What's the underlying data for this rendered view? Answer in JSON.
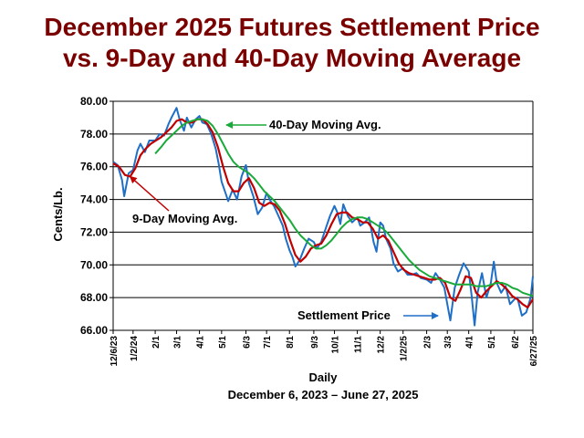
{
  "title_line1": "December 2025 Futures Settlement Price",
  "title_line2": "vs. 9-Day and 40-Day Moving Average",
  "colors": {
    "title": "#7a0000",
    "settlement": "#1f6fc6",
    "ma9": "#c00000",
    "ma40": "#1aaa3a"
  },
  "chart_data": {
    "type": "line",
    "ylabel": "Cents/Lb.",
    "xlabel": "Daily",
    "xlabel2": "December 6, 2023 – June 27, 2025",
    "ylim": [
      66.0,
      80.0
    ],
    "yticks": [
      "66.00",
      "68.00",
      "70.00",
      "72.00",
      "74.00",
      "76.00",
      "78.00",
      "80.00"
    ],
    "grid": true,
    "x_tick_labels": [
      "12/6/23",
      "1/2/24",
      "2/1",
      "3/1",
      "4/1",
      "5/1",
      "6/3",
      "7/1",
      "8/1",
      "9/3",
      "10/1",
      "11/1",
      "12/2",
      "1/2/25",
      "2/3",
      "3/3",
      "4/1",
      "5/1",
      "6/2",
      "6/27/25"
    ],
    "x_tick_dates": [
      "2023-12-06",
      "2024-01-02",
      "2024-02-01",
      "2024-03-01",
      "2024-04-01",
      "2024-05-01",
      "2024-06-03",
      "2024-07-01",
      "2024-08-01",
      "2024-09-03",
      "2024-10-01",
      "2024-11-01",
      "2024-12-02",
      "2025-01-02",
      "2025-02-03",
      "2025-03-03",
      "2025-04-01",
      "2025-05-01",
      "2025-06-02",
      "2025-06-27"
    ],
    "series": [
      {
        "name": "Settlement Price",
        "points": [
          [
            "2023-12-06",
            76.3
          ],
          [
            "2023-12-12",
            76.1
          ],
          [
            "2023-12-18",
            75.2
          ],
          [
            "2023-12-21",
            74.2
          ],
          [
            "2023-12-27",
            75.6
          ],
          [
            "2024-01-02",
            75.8
          ],
          [
            "2024-01-08",
            77.0
          ],
          [
            "2024-01-12",
            77.4
          ],
          [
            "2024-01-18",
            76.9
          ],
          [
            "2024-01-24",
            77.6
          ],
          [
            "2024-02-01",
            77.6
          ],
          [
            "2024-02-07",
            78.0
          ],
          [
            "2024-02-13",
            77.9
          ],
          [
            "2024-02-19",
            78.6
          ],
          [
            "2024-02-23",
            79.0
          ],
          [
            "2024-03-01",
            79.6
          ],
          [
            "2024-03-05",
            78.9
          ],
          [
            "2024-03-11",
            78.2
          ],
          [
            "2024-03-15",
            79.0
          ],
          [
            "2024-03-21",
            78.4
          ],
          [
            "2024-03-27",
            78.9
          ],
          [
            "2024-04-01",
            79.1
          ],
          [
            "2024-04-05",
            78.7
          ],
          [
            "2024-04-11",
            78.6
          ],
          [
            "2024-04-17",
            78.0
          ],
          [
            "2024-04-23",
            77.1
          ],
          [
            "2024-04-27",
            76.2
          ],
          [
            "2024-05-01",
            75.1
          ],
          [
            "2024-05-07",
            74.3
          ],
          [
            "2024-05-10",
            73.9
          ],
          [
            "2024-05-16",
            74.6
          ],
          [
            "2024-05-22",
            74.0
          ],
          [
            "2024-05-28",
            75.4
          ],
          [
            "2024-06-03",
            76.1
          ],
          [
            "2024-06-07",
            75.0
          ],
          [
            "2024-06-13",
            74.2
          ],
          [
            "2024-06-19",
            73.1
          ],
          [
            "2024-06-25",
            73.5
          ],
          [
            "2024-07-01",
            74.4
          ],
          [
            "2024-07-05",
            74.0
          ],
          [
            "2024-07-11",
            73.6
          ],
          [
            "2024-07-17",
            73.0
          ],
          [
            "2024-07-23",
            72.4
          ],
          [
            "2024-07-27",
            71.6
          ],
          [
            "2024-08-01",
            70.9
          ],
          [
            "2024-08-05",
            70.5
          ],
          [
            "2024-08-09",
            69.9
          ],
          [
            "2024-08-15",
            70.3
          ],
          [
            "2024-08-21",
            71.0
          ],
          [
            "2024-08-27",
            71.6
          ],
          [
            "2024-09-03",
            71.4
          ],
          [
            "2024-09-07",
            71.0
          ],
          [
            "2024-09-13",
            71.4
          ],
          [
            "2024-09-19",
            72.2
          ],
          [
            "2024-09-25",
            73.0
          ],
          [
            "2024-10-01",
            73.6
          ],
          [
            "2024-10-05",
            73.2
          ],
          [
            "2024-10-09",
            72.5
          ],
          [
            "2024-10-13",
            73.7
          ],
          [
            "2024-10-19",
            73.0
          ],
          [
            "2024-10-25",
            72.6
          ],
          [
            "2024-11-01",
            72.9
          ],
          [
            "2024-11-05",
            72.4
          ],
          [
            "2024-11-11",
            72.6
          ],
          [
            "2024-11-17",
            72.9
          ],
          [
            "2024-11-23",
            71.4
          ],
          [
            "2024-11-27",
            70.8
          ],
          [
            "2024-12-02",
            72.6
          ],
          [
            "2024-12-06",
            72.4
          ],
          [
            "2024-12-10",
            71.6
          ],
          [
            "2024-12-16",
            71.0
          ],
          [
            "2024-12-20",
            70.1
          ],
          [
            "2024-12-26",
            69.6
          ],
          [
            "2025-01-02",
            69.8
          ],
          [
            "2025-01-08",
            69.4
          ],
          [
            "2025-01-14",
            69.4
          ],
          [
            "2025-01-20",
            69.5
          ],
          [
            "2025-01-26",
            69.2
          ],
          [
            "2025-02-03",
            69.1
          ],
          [
            "2025-02-09",
            68.9
          ],
          [
            "2025-02-15",
            69.5
          ],
          [
            "2025-02-21",
            69.1
          ],
          [
            "2025-02-27",
            68.6
          ],
          [
            "2025-03-03",
            67.6
          ],
          [
            "2025-03-07",
            66.6
          ],
          [
            "2025-03-13",
            68.6
          ],
          [
            "2025-03-19",
            69.4
          ],
          [
            "2025-03-25",
            70.1
          ],
          [
            "2025-04-01",
            69.6
          ],
          [
            "2025-04-05",
            68.1
          ],
          [
            "2025-04-09",
            66.3
          ],
          [
            "2025-04-13",
            68.3
          ],
          [
            "2025-04-19",
            69.5
          ],
          [
            "2025-04-25",
            68.0
          ],
          [
            "2025-05-01",
            68.9
          ],
          [
            "2025-05-05",
            70.2
          ],
          [
            "2025-05-09",
            68.9
          ],
          [
            "2025-05-15",
            68.3
          ],
          [
            "2025-05-21",
            68.7
          ],
          [
            "2025-05-27",
            67.6
          ],
          [
            "2025-06-02",
            67.9
          ],
          [
            "2025-06-06",
            68.0
          ],
          [
            "2025-06-12",
            66.9
          ],
          [
            "2025-06-18",
            67.1
          ],
          [
            "2025-06-24",
            68.0
          ],
          [
            "2025-06-27",
            69.3
          ]
        ]
      },
      {
        "name": "9-Day Moving Avg.",
        "points": [
          [
            "2023-12-06",
            76.2
          ],
          [
            "2023-12-14",
            76.0
          ],
          [
            "2023-12-22",
            75.5
          ],
          [
            "2023-12-29",
            75.4
          ],
          [
            "2024-01-05",
            75.9
          ],
          [
            "2024-01-12",
            76.7
          ],
          [
            "2024-01-19",
            77.1
          ],
          [
            "2024-01-26",
            77.4
          ],
          [
            "2024-02-02",
            77.6
          ],
          [
            "2024-02-09",
            77.8
          ],
          [
            "2024-02-16",
            78.1
          ],
          [
            "2024-02-23",
            78.4
          ],
          [
            "2024-03-01",
            78.8
          ],
          [
            "2024-03-08",
            78.9
          ],
          [
            "2024-03-15",
            78.7
          ],
          [
            "2024-03-22",
            78.7
          ],
          [
            "2024-03-29",
            78.9
          ],
          [
            "2024-04-05",
            78.9
          ],
          [
            "2024-04-12",
            78.6
          ],
          [
            "2024-04-19",
            78.1
          ],
          [
            "2024-04-26",
            77.2
          ],
          [
            "2024-05-03",
            76.0
          ],
          [
            "2024-05-10",
            75.0
          ],
          [
            "2024-05-17",
            74.5
          ],
          [
            "2024-05-24",
            74.5
          ],
          [
            "2024-05-31",
            75.0
          ],
          [
            "2024-06-07",
            75.3
          ],
          [
            "2024-06-14",
            74.7
          ],
          [
            "2024-06-21",
            73.8
          ],
          [
            "2024-06-28",
            73.6
          ],
          [
            "2024-07-05",
            73.8
          ],
          [
            "2024-07-12",
            73.7
          ],
          [
            "2024-07-19",
            73.3
          ],
          [
            "2024-07-26",
            72.5
          ],
          [
            "2024-08-02",
            71.5
          ],
          [
            "2024-08-09",
            70.6
          ],
          [
            "2024-08-16",
            70.2
          ],
          [
            "2024-08-23",
            70.5
          ],
          [
            "2024-08-30",
            71.0
          ],
          [
            "2024-09-06",
            71.2
          ],
          [
            "2024-09-13",
            71.3
          ],
          [
            "2024-09-20",
            71.8
          ],
          [
            "2024-09-27",
            72.5
          ],
          [
            "2024-10-04",
            73.1
          ],
          [
            "2024-10-11",
            73.2
          ],
          [
            "2024-10-18",
            73.2
          ],
          [
            "2024-10-25",
            72.9
          ],
          [
            "2024-11-01",
            72.8
          ],
          [
            "2024-11-08",
            72.6
          ],
          [
            "2024-11-15",
            72.6
          ],
          [
            "2024-11-22",
            72.2
          ],
          [
            "2024-11-29",
            71.6
          ],
          [
            "2024-12-06",
            71.8
          ],
          [
            "2024-12-13",
            71.5
          ],
          [
            "2024-12-20",
            70.8
          ],
          [
            "2024-12-27",
            70.1
          ],
          [
            "2025-01-03",
            69.7
          ],
          [
            "2025-01-10",
            69.5
          ],
          [
            "2025-01-17",
            69.4
          ],
          [
            "2025-01-24",
            69.3
          ],
          [
            "2025-01-31",
            69.2
          ],
          [
            "2025-02-07",
            69.1
          ],
          [
            "2025-02-14",
            69.1
          ],
          [
            "2025-02-21",
            69.2
          ],
          [
            "2025-02-28",
            68.9
          ],
          [
            "2025-03-07",
            68.0
          ],
          [
            "2025-03-14",
            67.8
          ],
          [
            "2025-03-21",
            68.5
          ],
          [
            "2025-03-28",
            69.3
          ],
          [
            "2025-04-04",
            69.2
          ],
          [
            "2025-04-11",
            68.3
          ],
          [
            "2025-04-18",
            68.0
          ],
          [
            "2025-04-25",
            68.4
          ],
          [
            "2025-05-02",
            68.7
          ],
          [
            "2025-05-09",
            69.0
          ],
          [
            "2025-05-16",
            68.8
          ],
          [
            "2025-05-23",
            68.5
          ],
          [
            "2025-05-30",
            68.1
          ],
          [
            "2025-06-06",
            67.9
          ],
          [
            "2025-06-13",
            67.6
          ],
          [
            "2025-06-20",
            67.4
          ],
          [
            "2025-06-27",
            67.9
          ]
        ]
      },
      {
        "name": "40-Day Moving Avg.",
        "points": [
          [
            "2024-02-01",
            76.8
          ],
          [
            "2024-02-09",
            77.2
          ],
          [
            "2024-02-16",
            77.6
          ],
          [
            "2024-02-23",
            77.9
          ],
          [
            "2024-03-01",
            78.2
          ],
          [
            "2024-03-08",
            78.5
          ],
          [
            "2024-03-15",
            78.7
          ],
          [
            "2024-03-22",
            78.8
          ],
          [
            "2024-03-29",
            78.9
          ],
          [
            "2024-04-05",
            78.9
          ],
          [
            "2024-04-12",
            78.8
          ],
          [
            "2024-04-19",
            78.5
          ],
          [
            "2024-04-26",
            78.0
          ],
          [
            "2024-05-03",
            77.4
          ],
          [
            "2024-05-10",
            76.8
          ],
          [
            "2024-05-17",
            76.3
          ],
          [
            "2024-05-24",
            76.0
          ],
          [
            "2024-05-31",
            75.8
          ],
          [
            "2024-06-07",
            75.6
          ],
          [
            "2024-06-14",
            75.3
          ],
          [
            "2024-06-21",
            74.9
          ],
          [
            "2024-06-28",
            74.5
          ],
          [
            "2024-07-05",
            74.2
          ],
          [
            "2024-07-12",
            73.9
          ],
          [
            "2024-07-19",
            73.5
          ],
          [
            "2024-07-26",
            73.1
          ],
          [
            "2024-08-02",
            72.7
          ],
          [
            "2024-08-09",
            72.2
          ],
          [
            "2024-08-16",
            71.8
          ],
          [
            "2024-08-23",
            71.5
          ],
          [
            "2024-08-30",
            71.2
          ],
          [
            "2024-09-06",
            71.0
          ],
          [
            "2024-09-13",
            71.0
          ],
          [
            "2024-09-20",
            71.2
          ],
          [
            "2024-09-27",
            71.5
          ],
          [
            "2024-10-04",
            71.9
          ],
          [
            "2024-10-11",
            72.3
          ],
          [
            "2024-10-18",
            72.6
          ],
          [
            "2024-10-25",
            72.8
          ],
          [
            "2024-11-01",
            72.9
          ],
          [
            "2024-11-08",
            72.9
          ],
          [
            "2024-11-15",
            72.8
          ],
          [
            "2024-11-22",
            72.6
          ],
          [
            "2024-11-29",
            72.4
          ],
          [
            "2024-12-06",
            72.2
          ],
          [
            "2024-12-13",
            71.9
          ],
          [
            "2024-12-20",
            71.5
          ],
          [
            "2024-12-27",
            71.1
          ],
          [
            "2025-01-03",
            70.7
          ],
          [
            "2025-01-10",
            70.3
          ],
          [
            "2025-01-17",
            70.0
          ],
          [
            "2025-01-24",
            69.7
          ],
          [
            "2025-01-31",
            69.5
          ],
          [
            "2025-02-07",
            69.3
          ],
          [
            "2025-02-14",
            69.2
          ],
          [
            "2025-02-21",
            69.1
          ],
          [
            "2025-02-28",
            69.0
          ],
          [
            "2025-03-07",
            68.9
          ],
          [
            "2025-03-14",
            68.8
          ],
          [
            "2025-03-21",
            68.8
          ],
          [
            "2025-03-28",
            68.8
          ],
          [
            "2025-04-04",
            68.8
          ],
          [
            "2025-04-11",
            68.7
          ],
          [
            "2025-04-18",
            68.7
          ],
          [
            "2025-04-25",
            68.7
          ],
          [
            "2025-05-02",
            68.8
          ],
          [
            "2025-05-09",
            68.9
          ],
          [
            "2025-05-16",
            68.9
          ],
          [
            "2025-05-23",
            68.8
          ],
          [
            "2025-05-30",
            68.6
          ],
          [
            "2025-06-06",
            68.5
          ],
          [
            "2025-06-13",
            68.3
          ],
          [
            "2025-06-20",
            68.2
          ],
          [
            "2025-06-27",
            68.1
          ]
        ]
      }
    ],
    "annotations": [
      {
        "text": "40-Day Moving Avg.",
        "series": "40-Day Moving Avg.",
        "arrow_to": [
          "2024-04-05",
          78.6
        ]
      },
      {
        "text": "9-Day Moving Avg.",
        "series": "9-Day Moving Avg.",
        "arrow_to": [
          "2023-12-29",
          75.4
        ]
      },
      {
        "text": "Settlement Price",
        "series": "Settlement Price",
        "arrow_to": [
          "2025-02-27",
          67.6
        ]
      }
    ]
  }
}
